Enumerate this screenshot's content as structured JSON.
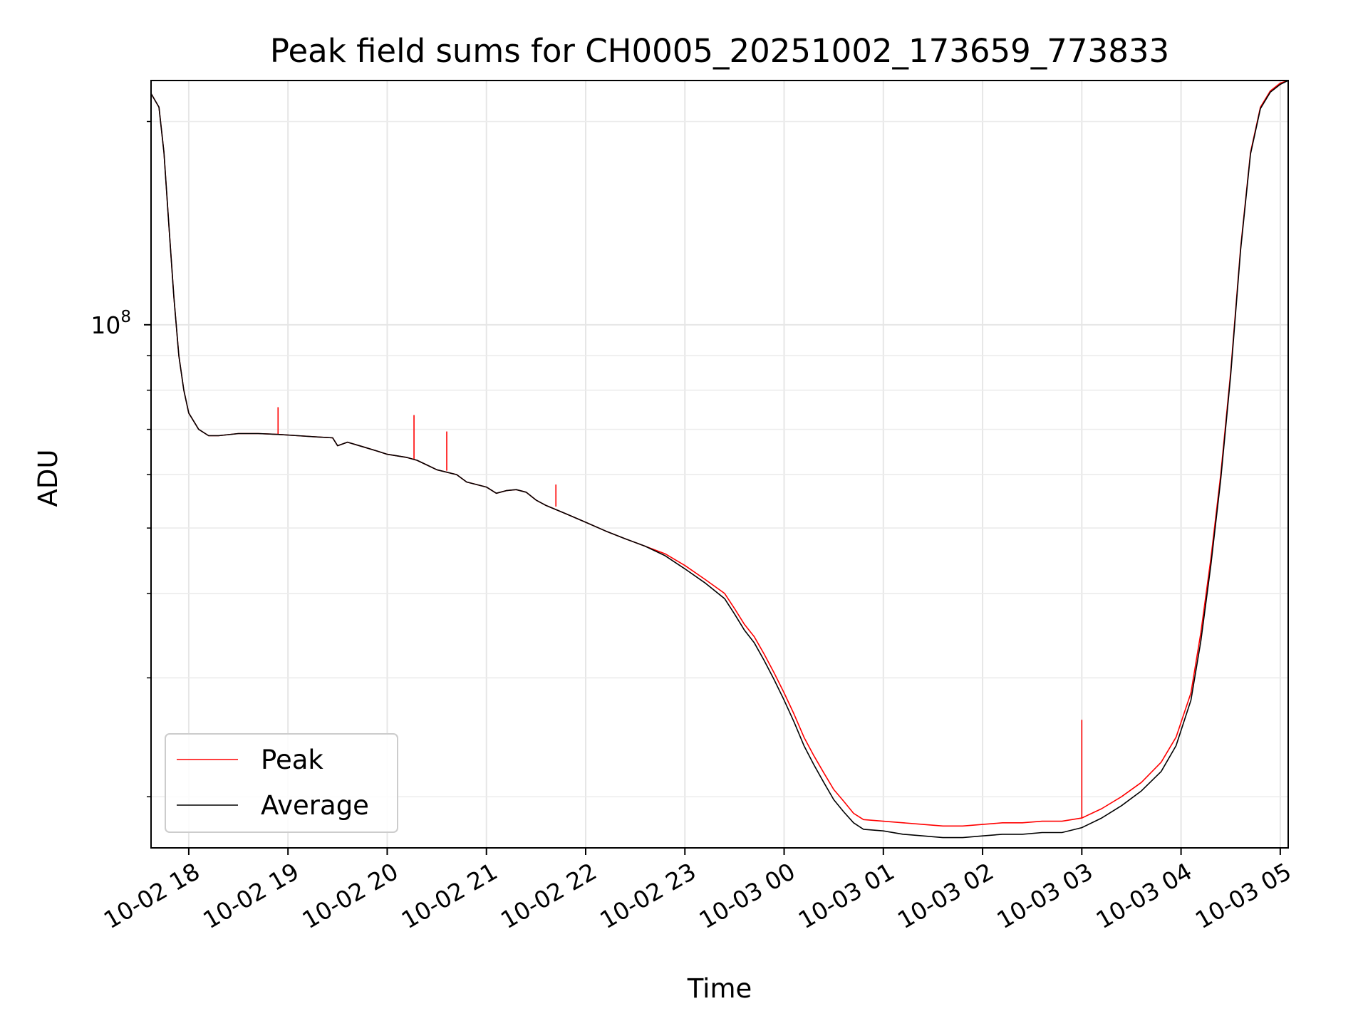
{
  "chart_data": {
    "type": "line",
    "title": "Peak field sums for CH0005_20251002_173659_773833",
    "xlabel": "Time",
    "ylabel": "ADU",
    "x_scale": "time",
    "y_scale": "log",
    "xlim_hours": [
      17.62,
      29.08
    ],
    "ylim": [
      16800000,
      230000000
    ],
    "x_ticks": [
      {
        "label": "10-02 18",
        "hour": 18
      },
      {
        "label": "10-02 19",
        "hour": 19
      },
      {
        "label": "10-02 20",
        "hour": 20
      },
      {
        "label": "10-02 21",
        "hour": 21
      },
      {
        "label": "10-02 22",
        "hour": 22
      },
      {
        "label": "10-02 23",
        "hour": 23
      },
      {
        "label": "10-03 00",
        "hour": 24
      },
      {
        "label": "10-03 01",
        "hour": 25
      },
      {
        "label": "10-03 02",
        "hour": 26
      },
      {
        "label": "10-03 03",
        "hour": 27
      },
      {
        "label": "10-03 04",
        "hour": 28
      },
      {
        "label": "10-03 05",
        "hour": 29
      }
    ],
    "y_major_tick": {
      "base": "10",
      "exponent": "8",
      "value": 100000000
    },
    "y_minor_ticks": [
      20000000,
      30000000,
      40000000,
      50000000,
      60000000,
      70000000,
      80000000,
      90000000,
      200000000
    ],
    "grid": true,
    "legend_position": "lower-left",
    "series": [
      {
        "name": "Peak",
        "color": "#ff0000",
        "points": [
          [
            17.62,
            220000000
          ],
          [
            17.7,
            210000000
          ],
          [
            17.75,
            180000000
          ],
          [
            17.8,
            140000000
          ],
          [
            17.85,
            110000000
          ],
          [
            17.9,
            90000000
          ],
          [
            17.95,
            80000000
          ],
          [
            18.0,
            74000000
          ],
          [
            18.1,
            70000000
          ],
          [
            18.2,
            68500000
          ],
          [
            18.3,
            68500000
          ],
          [
            18.5,
            69000000
          ],
          [
            18.7,
            69000000
          ],
          [
            18.9,
            68800000
          ],
          [
            19.1,
            68500000
          ],
          [
            19.3,
            68200000
          ],
          [
            19.45,
            68000000
          ],
          [
            19.5,
            66200000
          ],
          [
            19.6,
            67000000
          ],
          [
            19.75,
            66000000
          ],
          [
            19.9,
            65000000
          ],
          [
            20.0,
            64300000
          ],
          [
            20.2,
            63600000
          ],
          [
            20.3,
            63000000
          ],
          [
            20.4,
            62000000
          ],
          [
            20.5,
            61000000
          ],
          [
            20.7,
            60000000
          ],
          [
            20.8,
            58500000
          ],
          [
            21.0,
            57500000
          ],
          [
            21.1,
            56300000
          ],
          [
            21.2,
            56800000
          ],
          [
            21.3,
            57000000
          ],
          [
            21.4,
            56500000
          ],
          [
            21.5,
            55000000
          ],
          [
            21.6,
            54000000
          ],
          [
            21.8,
            52500000
          ],
          [
            22.0,
            51000000
          ],
          [
            22.2,
            49500000
          ],
          [
            22.4,
            48200000
          ],
          [
            22.6,
            47000000
          ],
          [
            22.8,
            45800000
          ],
          [
            23.0,
            44000000
          ],
          [
            23.2,
            42000000
          ],
          [
            23.4,
            40000000
          ],
          [
            23.5,
            38000000
          ],
          [
            23.6,
            36000000
          ],
          [
            23.7,
            34500000
          ],
          [
            23.8,
            32500000
          ],
          [
            23.9,
            30500000
          ],
          [
            24.0,
            28500000
          ],
          [
            24.1,
            26500000
          ],
          [
            24.2,
            24500000
          ],
          [
            24.3,
            23000000
          ],
          [
            24.4,
            21700000
          ],
          [
            24.5,
            20500000
          ],
          [
            24.6,
            19700000
          ],
          [
            24.7,
            18900000
          ],
          [
            24.8,
            18500000
          ],
          [
            25.0,
            18400000
          ],
          [
            25.2,
            18300000
          ],
          [
            25.4,
            18200000
          ],
          [
            25.6,
            18100000
          ],
          [
            25.8,
            18100000
          ],
          [
            26.0,
            18200000
          ],
          [
            26.2,
            18300000
          ],
          [
            26.4,
            18300000
          ],
          [
            26.6,
            18400000
          ],
          [
            26.8,
            18400000
          ],
          [
            27.0,
            18600000
          ],
          [
            27.2,
            19200000
          ],
          [
            27.4,
            20000000
          ],
          [
            27.6,
            21000000
          ],
          [
            27.8,
            22500000
          ],
          [
            27.95,
            24500000
          ],
          [
            28.1,
            28500000
          ],
          [
            28.2,
            35000000
          ],
          [
            28.3,
            45000000
          ],
          [
            28.4,
            60000000
          ],
          [
            28.5,
            85000000
          ],
          [
            28.6,
            130000000
          ],
          [
            28.7,
            180000000
          ],
          [
            28.8,
            210000000
          ],
          [
            28.9,
            222000000
          ],
          [
            29.0,
            228000000
          ],
          [
            29.08,
            230000000
          ]
        ]
      },
      {
        "name": "Average",
        "color": "#000000",
        "points": [
          [
            17.62,
            220000000
          ],
          [
            17.7,
            210000000
          ],
          [
            17.75,
            180000000
          ],
          [
            17.8,
            140000000
          ],
          [
            17.85,
            110000000
          ],
          [
            17.9,
            90000000
          ],
          [
            17.95,
            80000000
          ],
          [
            18.0,
            74000000
          ],
          [
            18.1,
            70000000
          ],
          [
            18.2,
            68500000
          ],
          [
            18.3,
            68500000
          ],
          [
            18.5,
            69000000
          ],
          [
            18.7,
            69000000
          ],
          [
            18.9,
            68800000
          ],
          [
            19.1,
            68500000
          ],
          [
            19.3,
            68200000
          ],
          [
            19.45,
            68000000
          ],
          [
            19.5,
            66200000
          ],
          [
            19.6,
            67000000
          ],
          [
            19.75,
            66000000
          ],
          [
            19.9,
            65000000
          ],
          [
            20.0,
            64300000
          ],
          [
            20.2,
            63600000
          ],
          [
            20.3,
            63000000
          ],
          [
            20.4,
            62000000
          ],
          [
            20.5,
            61000000
          ],
          [
            20.7,
            60000000
          ],
          [
            20.8,
            58500000
          ],
          [
            21.0,
            57500000
          ],
          [
            21.1,
            56300000
          ],
          [
            21.2,
            56800000
          ],
          [
            21.3,
            57000000
          ],
          [
            21.4,
            56500000
          ],
          [
            21.5,
            55000000
          ],
          [
            21.6,
            54000000
          ],
          [
            21.8,
            52500000
          ],
          [
            22.0,
            51000000
          ],
          [
            22.2,
            49500000
          ],
          [
            22.4,
            48200000
          ],
          [
            22.6,
            47000000
          ],
          [
            22.8,
            45500000
          ],
          [
            23.0,
            43500000
          ],
          [
            23.2,
            41500000
          ],
          [
            23.4,
            39300000
          ],
          [
            23.5,
            37300000
          ],
          [
            23.6,
            35300000
          ],
          [
            23.7,
            33800000
          ],
          [
            23.8,
            31800000
          ],
          [
            23.9,
            29800000
          ],
          [
            24.0,
            27800000
          ],
          [
            24.1,
            25800000
          ],
          [
            24.2,
            23800000
          ],
          [
            24.3,
            22300000
          ],
          [
            24.4,
            21000000
          ],
          [
            24.5,
            19800000
          ],
          [
            24.6,
            19000000
          ],
          [
            24.7,
            18300000
          ],
          [
            24.8,
            17900000
          ],
          [
            25.0,
            17800000
          ],
          [
            25.2,
            17600000
          ],
          [
            25.4,
            17500000
          ],
          [
            25.6,
            17400000
          ],
          [
            25.8,
            17400000
          ],
          [
            26.0,
            17500000
          ],
          [
            26.2,
            17600000
          ],
          [
            26.4,
            17600000
          ],
          [
            26.6,
            17700000
          ],
          [
            26.8,
            17700000
          ],
          [
            27.0,
            18000000
          ],
          [
            27.2,
            18600000
          ],
          [
            27.4,
            19400000
          ],
          [
            27.6,
            20400000
          ],
          [
            27.8,
            21800000
          ],
          [
            27.95,
            23800000
          ],
          [
            28.1,
            27800000
          ],
          [
            28.2,
            34000000
          ],
          [
            28.3,
            44000000
          ],
          [
            28.4,
            59000000
          ],
          [
            28.5,
            84000000
          ],
          [
            28.6,
            129000000
          ],
          [
            28.7,
            179000000
          ],
          [
            28.8,
            209000000
          ],
          [
            28.9,
            221000000
          ],
          [
            29.0,
            227000000
          ],
          [
            29.08,
            230000000
          ]
        ]
      }
    ],
    "peak_spikes": [
      {
        "hour": 18.9,
        "base": 68800000,
        "top": 75500000
      },
      {
        "hour": 20.27,
        "base": 63200000,
        "top": 73500000
      },
      {
        "hour": 20.6,
        "base": 60800000,
        "top": 69500000
      },
      {
        "hour": 21.7,
        "base": 53800000,
        "top": 58000000
      },
      {
        "hour": 27.0,
        "base": 18600000,
        "top": 26000000
      }
    ]
  }
}
